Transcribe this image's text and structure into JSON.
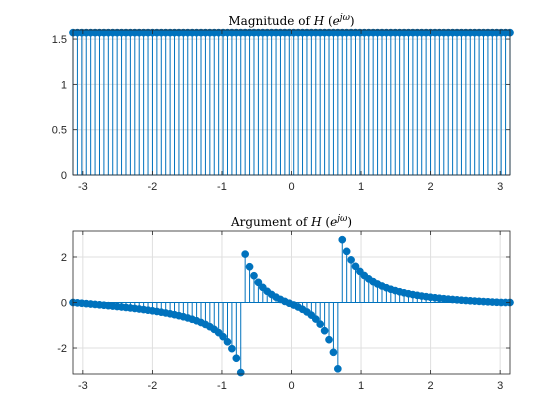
{
  "colors": {
    "stem": "#0072BD",
    "grid": "#dfdfdf",
    "axis": "#262626",
    "background": "#ffffff"
  },
  "chart_data": [
    {
      "type": "stem",
      "title": {
        "prefix": "Magnitude of ",
        "func": "H",
        "open": " (",
        "base": "e",
        "exponent": "jω",
        "close": ")"
      },
      "xlim": [
        -3.1416,
        3.1416
      ],
      "ylim": [
        0,
        1.6
      ],
      "xticks": [
        -3,
        -2,
        -1,
        0,
        1,
        2,
        3
      ],
      "xtick_labels": [
        "-3",
        "-2",
        "-1",
        "0",
        "1",
        "2",
        "3"
      ],
      "yticks": [
        0,
        0.5,
        1,
        1.5
      ],
      "ytick_labels": [
        "0",
        "0.5",
        "1",
        "1.5"
      ],
      "grid": true,
      "sample_count": 100,
      "x": [
        -3.1416,
        -3.0781,
        -3.0146,
        -2.9512,
        -2.8877,
        -2.8242,
        -2.7608,
        -2.6973,
        -2.6338,
        -2.5704,
        -2.5069,
        -2.4435,
        -2.38,
        -2.3165,
        -2.2531,
        -2.1896,
        -2.1261,
        -2.0627,
        -1.9992,
        -1.9357,
        -1.8723,
        -1.8088,
        -1.7453,
        -1.6819,
        -1.6184,
        -1.5549,
        -1.4915,
        -1.428,
        -1.3645,
        -1.3011,
        -1.2376,
        -1.1741,
        -1.1107,
        -1.0472,
        -0.9837,
        -0.9203,
        -0.8568,
        -0.7933,
        -0.7299,
        -0.6664,
        -0.6029,
        -0.5395,
        -0.476,
        -0.4125,
        -0.3491,
        -0.2856,
        -0.2221,
        -0.1587,
        -0.0952,
        -0.0317,
        0.0317,
        0.0952,
        0.1587,
        0.2221,
        0.2856,
        0.3491,
        0.4125,
        0.476,
        0.5395,
        0.6029,
        0.6664,
        0.7299,
        0.7933,
        0.8568,
        0.9203,
        0.9837,
        1.0472,
        1.1107,
        1.1741,
        1.2376,
        1.3011,
        1.3645,
        1.428,
        1.4915,
        1.5549,
        1.6184,
        1.6819,
        1.7453,
        1.8088,
        1.8723,
        1.9357,
        1.9992,
        2.0627,
        2.1261,
        2.1896,
        2.2531,
        2.3165,
        2.38,
        2.4435,
        2.5069,
        2.5704,
        2.6338,
        2.6973,
        2.7608,
        2.8242,
        2.8877,
        2.9512,
        3.0146,
        3.0781,
        3.1416
      ],
      "y": [
        1.5708,
        1.5708,
        1.5708,
        1.5708,
        1.5708,
        1.5708,
        1.5708,
        1.5708,
        1.5708,
        1.5708,
        1.5708,
        1.5708,
        1.5708,
        1.5708,
        1.5708,
        1.5708,
        1.5708,
        1.5708,
        1.5708,
        1.5708,
        1.5708,
        1.5708,
        1.5708,
        1.5708,
        1.5708,
        1.5708,
        1.5708,
        1.5708,
        1.5708,
        1.5708,
        1.5708,
        1.5708,
        1.5708,
        1.5708,
        1.5708,
        1.5708,
        1.5708,
        1.5708,
        1.5708,
        1.5708,
        1.5708,
        1.5708,
        1.5708,
        1.5708,
        1.5708,
        1.5708,
        1.5708,
        1.5708,
        1.5708,
        1.5708,
        1.5708,
        1.5708,
        1.5708,
        1.5708,
        1.5708,
        1.5708,
        1.5708,
        1.5708,
        1.5708,
        1.5708,
        1.5708,
        1.5708,
        1.5708,
        1.5708,
        1.5708,
        1.5708,
        1.5708,
        1.5708,
        1.5708,
        1.5708,
        1.5708,
        1.5708,
        1.5708,
        1.5708,
        1.5708,
        1.5708,
        1.5708,
        1.5708,
        1.5708,
        1.5708,
        1.5708,
        1.5708,
        1.5708,
        1.5708,
        1.5708,
        1.5708,
        1.5708,
        1.5708,
        1.5708,
        1.5708,
        1.5708,
        1.5708,
        1.5708,
        1.5708,
        1.5708,
        1.5708,
        1.5708,
        1.5708,
        1.5708,
        1.5708
      ]
    },
    {
      "type": "stem",
      "title": {
        "prefix": "Argument of ",
        "func": "H",
        "open": " (",
        "base": "e",
        "exponent": "jω",
        "close": ")"
      },
      "xlim": [
        -3.1416,
        3.1416
      ],
      "ylim": [
        -3.1416,
        3.1416
      ],
      "xticks": [
        -3,
        -2,
        -1,
        0,
        1,
        2,
        3
      ],
      "xtick_labels": [
        "-3",
        "-2",
        "-1",
        "0",
        "1",
        "2",
        "3"
      ],
      "yticks": [
        -2,
        0,
        2
      ],
      "ytick_labels": [
        "-2",
        "0",
        "2"
      ],
      "grid": true,
      "sample_count": 100,
      "x": [
        -3.1416,
        -3.0781,
        -3.0146,
        -2.9512,
        -2.8877,
        -2.8242,
        -2.7608,
        -2.6973,
        -2.6338,
        -2.5704,
        -2.5069,
        -2.4435,
        -2.38,
        -2.3165,
        -2.2531,
        -2.1896,
        -2.1261,
        -2.0627,
        -1.9992,
        -1.9357,
        -1.8723,
        -1.8088,
        -1.7453,
        -1.6819,
        -1.6184,
        -1.5549,
        -1.4915,
        -1.428,
        -1.3645,
        -1.3011,
        -1.2376,
        -1.1741,
        -1.1107,
        -1.0472,
        -0.9837,
        -0.9203,
        -0.8568,
        -0.7933,
        -0.7299,
        -0.6664,
        -0.6029,
        -0.5395,
        -0.476,
        -0.4125,
        -0.3491,
        -0.2856,
        -0.2221,
        -0.1587,
        -0.0952,
        -0.0317,
        0.0317,
        0.0952,
        0.1587,
        0.2221,
        0.2856,
        0.3491,
        0.4125,
        0.476,
        0.5395,
        0.6029,
        0.6664,
        0.7299,
        0.7933,
        0.8568,
        0.9203,
        0.9837,
        1.0472,
        1.1107,
        1.1741,
        1.2376,
        1.3011,
        1.3645,
        1.428,
        1.4915,
        1.5549,
        1.6184,
        1.6819,
        1.7453,
        1.8088,
        1.8723,
        1.9357,
        1.9992,
        2.0627,
        2.1261,
        2.1896,
        2.2531,
        2.3165,
        2.38,
        2.4435,
        2.5069,
        2.5704,
        2.6338,
        2.6973,
        2.7608,
        2.8242,
        2.8877,
        2.9512,
        3.0146,
        3.0781,
        3.1416
      ],
      "y": [
        0,
        -0.0167,
        -0.0335,
        -0.0504,
        -0.0675,
        -0.0848,
        -0.1024,
        -0.1204,
        -0.1388,
        -0.1576,
        -0.177,
        -0.197,
        -0.2178,
        -0.2394,
        -0.262,
        -0.2857,
        -0.3106,
        -0.3368,
        -0.3646,
        -0.3942,
        -0.4258,
        -0.4597,
        -0.4963,
        -0.536,
        -0.5792,
        -0.6267,
        -0.6791,
        -0.7376,
        -0.8033,
        -0.8779,
        -0.9635,
        -1.0633,
        -1.1815,
        -1.3245,
        -1.5017,
        -1.7282,
        -2.0286,
        -2.4485,
        -3.0781,
        2.1261,
        1.5708,
        1.1766,
        0.8858,
        0.6648,
        0.4916,
        0.3522,
        0.2354,
        0.1346,
        0.0475,
        -0.0317,
        -0.1109,
        -0.198,
        -0.2988,
        -0.4156,
        -0.555,
        -0.7282,
        -0.9492,
        -1.2399,
        -1.6341,
        -2.1894,
        -2.9146,
        2.7608,
        2.2464,
        1.8723,
        1.5881,
        1.3645,
        1.1852,
        1.0385,
        0.9163,
        0.8131,
        0.7248,
        0.6485,
        0.5819,
        0.5234,
        0.4716,
        0.4256,
        0.3843,
        0.3472,
        0.3137,
        0.2833,
        0.2557,
        0.2304,
        0.2073,
        0.186,
        0.1663,
        0.1481,
        0.1312,
        0.1155,
        0.1008,
        0.087,
        0.0741,
        0.0619,
        0.0504,
        0.0395,
        0.0291,
        0.0191,
        0.0095,
        0,
        0,
        0
      ]
    }
  ]
}
